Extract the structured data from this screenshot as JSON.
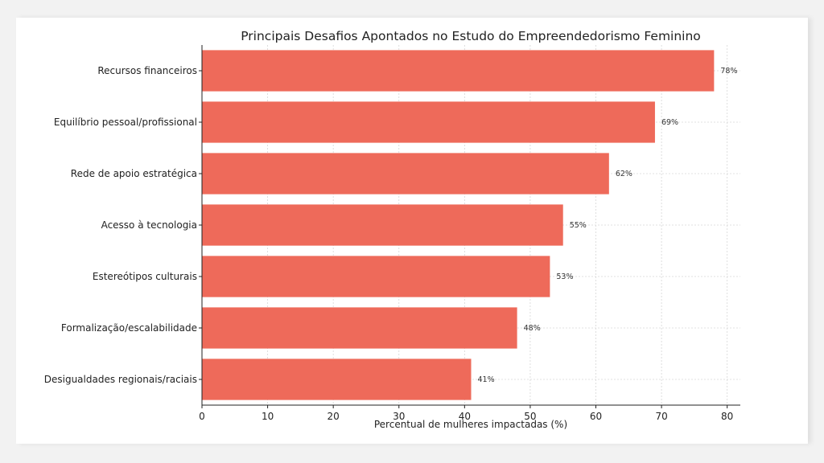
{
  "chart_data": {
    "type": "bar",
    "orientation": "horizontal",
    "title": "Principais Desafios Apontados no Estudo do Empreendedorismo Feminino",
    "xlabel": "Percentual de mulheres impactadas (%)",
    "ylabel": "",
    "categories": [
      "Recursos financeiros",
      "Equilíbrio pessoal/profissional",
      "Rede de apoio estratégica",
      "Acesso à tecnologia",
      "Estereótipos culturais",
      "Formalização/escalabilidade",
      "Desigualdades regionais/raciais"
    ],
    "values": [
      78,
      69,
      62,
      55,
      53,
      48,
      41
    ],
    "value_labels": [
      "78%",
      "69%",
      "62%",
      "55%",
      "53%",
      "48%",
      "41%"
    ],
    "xticks": [
      0,
      10,
      20,
      30,
      40,
      50,
      60,
      70,
      80
    ],
    "xlim": [
      0,
      82
    ],
    "grid": true,
    "bar_color": "#ee6a5a"
  }
}
